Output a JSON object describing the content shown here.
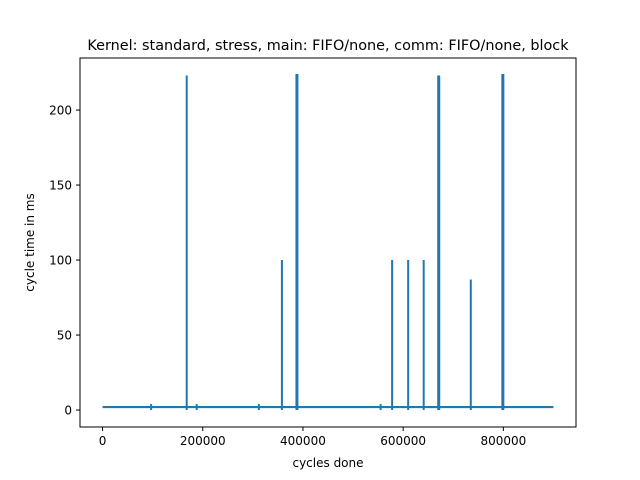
{
  "chart_data": {
    "type": "line",
    "title": "Kernel: standard, stress, main: FIFO/none, comm: FIFO/none, block",
    "xlabel": "cycles done",
    "ylabel": "cycle time in ms",
    "xlim": [
      -45000,
      945000
    ],
    "ylim": [
      -11.3,
      234.7
    ],
    "xticks": [
      0,
      200000,
      400000,
      600000,
      800000
    ],
    "xtick_labels": [
      "0",
      "200000",
      "400000",
      "600000",
      "800000"
    ],
    "yticks": [
      0,
      50,
      100,
      150,
      200
    ],
    "ytick_labels": [
      "0",
      "50",
      "100",
      "150",
      "200"
    ],
    "grid": false,
    "legend": "none",
    "color": "#1f77b4",
    "baseline_ms": 2,
    "x_range": [
      0,
      900000
    ],
    "spikes": [
      {
        "x": 97000,
        "y": 4
      },
      {
        "x": 168000,
        "y": 223
      },
      {
        "x": 188000,
        "y": 4
      },
      {
        "x": 312000,
        "y": 4
      },
      {
        "x": 358000,
        "y": 100
      },
      {
        "x": 387000,
        "y": 224
      },
      {
        "x": 389000,
        "y": 224
      },
      {
        "x": 555000,
        "y": 4
      },
      {
        "x": 578000,
        "y": 100
      },
      {
        "x": 610000,
        "y": 100
      },
      {
        "x": 641000,
        "y": 100
      },
      {
        "x": 670000,
        "y": 223
      },
      {
        "x": 672000,
        "y": 223
      },
      {
        "x": 735000,
        "y": 87
      },
      {
        "x": 798000,
        "y": 224
      },
      {
        "x": 800000,
        "y": 224
      }
    ]
  }
}
